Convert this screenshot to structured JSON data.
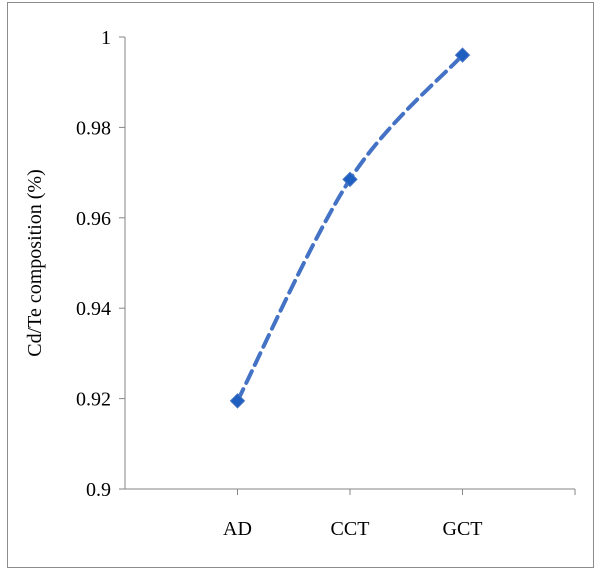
{
  "chart_data": {
    "type": "line",
    "title": "",
    "xlabel": "",
    "ylabel": "Cd/Te composition (%)",
    "categories": [
      "AD",
      "CCT",
      "GCT"
    ],
    "series": [
      {
        "values": [
          0.9195,
          0.9685,
          0.996
        ]
      }
    ],
    "ylim": [
      0.9,
      1.0
    ],
    "y_ticks": [
      0.9,
      0.92,
      0.94,
      0.96,
      0.98,
      1
    ],
    "y_tick_labels": [
      "0.9",
      "0.92",
      "0.94",
      "0.96",
      "0.98",
      "1"
    ],
    "grid": false,
    "legend": "none",
    "line_style": "dashed",
    "smooth": true,
    "marker": "diamond",
    "colors": {
      "series": "#4472C4",
      "marker": "#1F5FBF",
      "axis": "#868686"
    }
  }
}
